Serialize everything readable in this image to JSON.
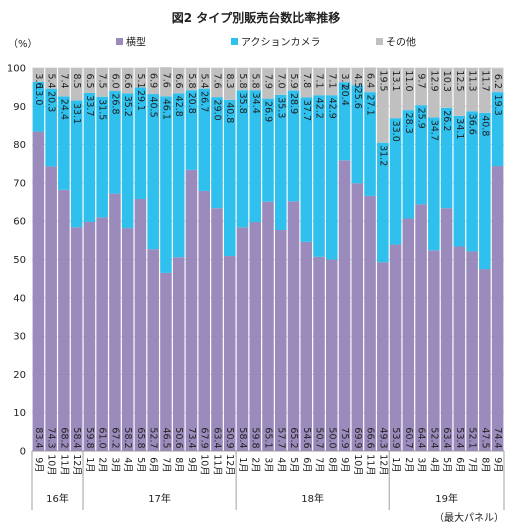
{
  "chart_data": {
    "type": "bar",
    "stacked": true,
    "title": "図2 タイプ別販売台数比率推移",
    "ylabel": "（%）",
    "footnote": "（最大パネル）",
    "ylim": [
      0,
      100
    ],
    "yticks": [
      0,
      10,
      20,
      30,
      40,
      50,
      60,
      70,
      80,
      90,
      100
    ],
    "grid": true,
    "legend_position": "top",
    "categories": [
      "9月",
      "10月",
      "11月",
      "12月",
      "1月",
      "2月",
      "3月",
      "4月",
      "5月",
      "6月",
      "7月",
      "8月",
      "9月",
      "10月",
      "11月",
      "12月",
      "1月",
      "2月",
      "3月",
      "4月",
      "5月",
      "6月",
      "7月",
      "8月",
      "9月",
      "10月",
      "11月",
      "12月",
      "1月",
      "2月",
      "3月",
      "4月",
      "5月",
      "6月",
      "7月",
      "8月",
      "9月"
    ],
    "year_groups": [
      {
        "label": "16年",
        "count": 4
      },
      {
        "label": "17年",
        "count": 12
      },
      {
        "label": "18年",
        "count": 12
      },
      {
        "label": "19年",
        "count": 9
      }
    ],
    "series": [
      {
        "name": "横型",
        "color": "#9b8bbd",
        "values": [
          83.4,
          74.3,
          68.2,
          58.4,
          59.8,
          61.0,
          67.2,
          58.2,
          65.8,
          52.7,
          46.5,
          50.6,
          73.4,
          67.9,
          63.4,
          50.9,
          58.4,
          59.8,
          65.1,
          57.7,
          65.2,
          54.6,
          50.7,
          50.0,
          75.9,
          69.9,
          66.6,
          49.3,
          53.9,
          60.7,
          64.4,
          52.4,
          63.4,
          53.4,
          52.1,
          47.5,
          74.4
        ]
      },
      {
        "name": "アクションカメラ",
        "color": "#2fc0ee",
        "values": [
          13.0,
          20.3,
          24.4,
          33.1,
          33.7,
          31.5,
          26.8,
          35.2,
          29.1,
          40.5,
          46.1,
          42.8,
          20.8,
          26.7,
          29.0,
          40.8,
          35.8,
          34.4,
          26.9,
          35.3,
          28.9,
          37.7,
          42.2,
          42.9,
          20.4,
          25.6,
          27.1,
          31.2,
          33.0,
          28.3,
          25.9,
          34.7,
          26.2,
          34.1,
          36.6,
          40.8,
          19.3
        ]
      },
      {
        "name": "その他",
        "color": "#c0c0c0",
        "values": [
          3.6,
          5.4,
          7.4,
          8.5,
          6.5,
          7.5,
          6.0,
          6.6,
          5.1,
          6.9,
          7.6,
          6.6,
          5.8,
          5.4,
          7.6,
          8.3,
          5.8,
          5.8,
          7.9,
          7.0,
          5.9,
          7.8,
          7.1,
          7.1,
          3.7,
          4.5,
          6.4,
          19.5,
          13.1,
          11.0,
          9.7,
          12.9,
          10.3,
          12.5,
          11.3,
          11.7,
          6.2
        ]
      }
    ]
  }
}
